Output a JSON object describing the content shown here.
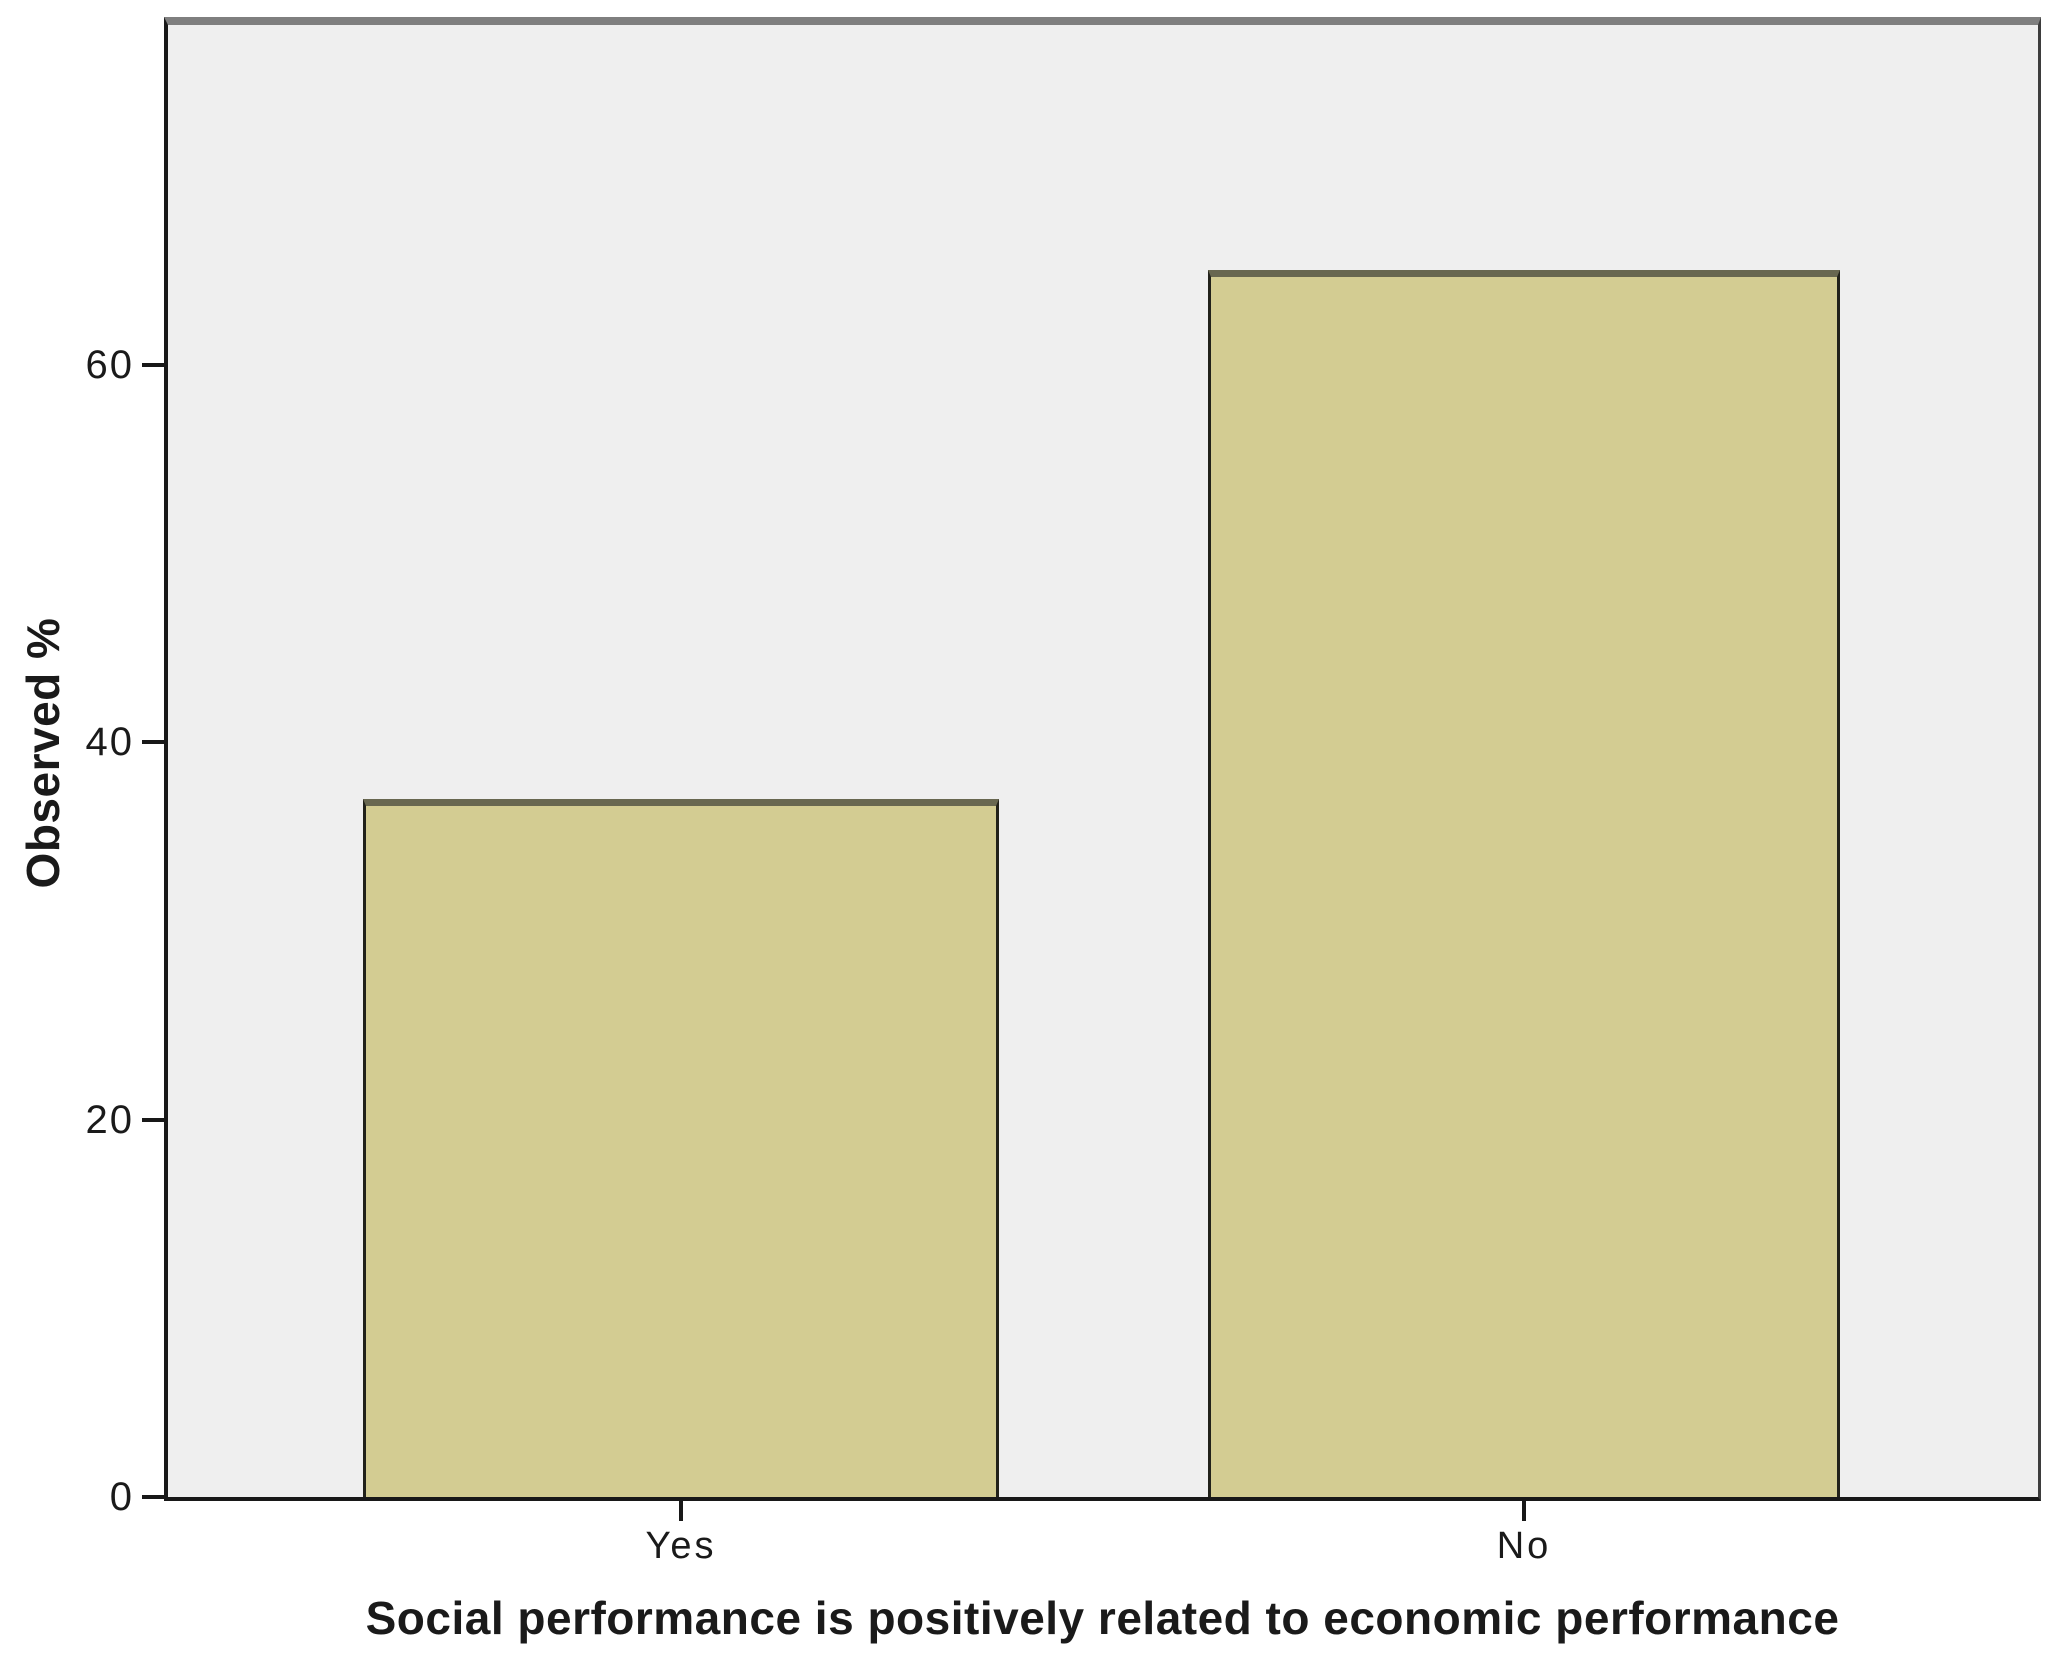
{
  "chart_data": {
    "type": "bar",
    "title": "",
    "xlabel": "Social performance is positively related to economic performance",
    "ylabel": "Observed %",
    "categories": [
      "Yes",
      "No"
    ],
    "values": [
      37,
      65
    ],
    "yticks": [
      0,
      20,
      40,
      60
    ],
    "ylim": [
      0,
      78
    ],
    "legend": "none",
    "grid": "off",
    "bar_color": "#d3cc92",
    "bar_border_color": "#21211a",
    "plot_background": "#efefef",
    "frame_top_color": "#7f7f7f",
    "outer_background": "#ffffff"
  }
}
